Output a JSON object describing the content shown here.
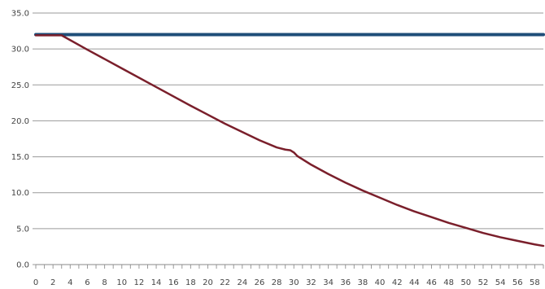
{
  "chart_data": {
    "type": "line",
    "title": "",
    "xlabel": "",
    "ylabel": "",
    "xlim": [
      0,
      59
    ],
    "ylim": [
      0,
      35
    ],
    "y_ticks": [
      "0.0",
      "5.0",
      "10.0",
      "15.0",
      "20.0",
      "25.0",
      "30.0",
      "35.0"
    ],
    "y_tick_values": [
      0,
      5,
      10,
      15,
      20,
      25,
      30,
      35
    ],
    "x_ticks": [
      "0",
      "2",
      "4",
      "6",
      "8",
      "10",
      "12",
      "14",
      "16",
      "18",
      "20",
      "22",
      "24",
      "26",
      "28",
      "30",
      "32",
      "34",
      "36",
      "38",
      "40",
      "42",
      "44",
      "46",
      "48",
      "50",
      "52",
      "54",
      "56",
      "58"
    ],
    "x_tick_values": [
      0,
      2,
      4,
      6,
      8,
      10,
      12,
      14,
      16,
      18,
      20,
      22,
      24,
      26,
      28,
      30,
      32,
      34,
      36,
      38,
      40,
      42,
      44,
      46,
      48,
      50,
      52,
      54,
      56,
      58
    ],
    "grid": true,
    "legend": "none",
    "series": [
      {
        "color": "#1f4e79",
        "x": [
          0,
          59
        ],
        "y": [
          32.0,
          32.0
        ]
      },
      {
        "color": "#7a1f2b",
        "x": [
          0,
          3,
          6,
          10,
          14,
          18,
          22,
          26,
          28,
          29,
          29.6,
          30,
          30.4,
          32,
          34,
          36,
          38,
          40,
          42,
          44,
          46,
          48,
          50,
          52,
          54,
          56,
          58,
          59
        ],
        "y": [
          31.9,
          31.9,
          29.9,
          27.3,
          24.7,
          22.1,
          19.6,
          17.3,
          16.3,
          16.0,
          15.9,
          15.6,
          15.1,
          13.9,
          12.6,
          11.4,
          10.3,
          9.3,
          8.3,
          7.4,
          6.6,
          5.8,
          5.1,
          4.4,
          3.8,
          3.3,
          2.8,
          2.6
        ]
      }
    ]
  }
}
